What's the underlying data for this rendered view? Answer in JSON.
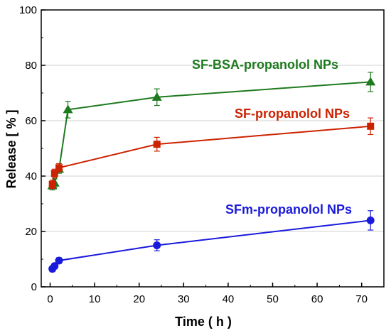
{
  "chart_data": {
    "type": "line",
    "xlabel": "Time ( h )",
    "ylabel": "Release [ % ]",
    "xlim": [
      -2,
      75
    ],
    "ylim": [
      0,
      100
    ],
    "xticks": [
      0,
      10,
      20,
      30,
      40,
      50,
      60,
      70
    ],
    "yticks": [
      0,
      20,
      40,
      60,
      80,
      100
    ],
    "grid": "horizontal",
    "series": [
      {
        "name": "SF-BSA-propanolol NPs",
        "color": "#1e7a1e",
        "marker": "triangle",
        "x": [
          0.5,
          1,
          2,
          4,
          24,
          72
        ],
        "y": [
          36.5,
          37.5,
          42.5,
          64,
          68.5,
          74
        ],
        "err": [
          1.5,
          1.5,
          1.5,
          3,
          3,
          3.5
        ]
      },
      {
        "name": "SF-propanolol NPs",
        "color": "#cc2200",
        "marker": "square",
        "x": [
          0.5,
          1,
          2,
          24,
          72
        ],
        "y": [
          37,
          41,
          43,
          51.5,
          58
        ],
        "err": [
          1.5,
          1.5,
          1.5,
          2.5,
          3
        ]
      },
      {
        "name": "SFm-propanolol NPs",
        "color": "#1a1adb",
        "marker": "circle",
        "x": [
          0.5,
          1,
          2,
          24,
          72
        ],
        "y": [
          6.5,
          7.5,
          9.5,
          15,
          24
        ],
        "err": [
          1,
          1,
          1,
          2,
          3.5
        ]
      }
    ]
  }
}
